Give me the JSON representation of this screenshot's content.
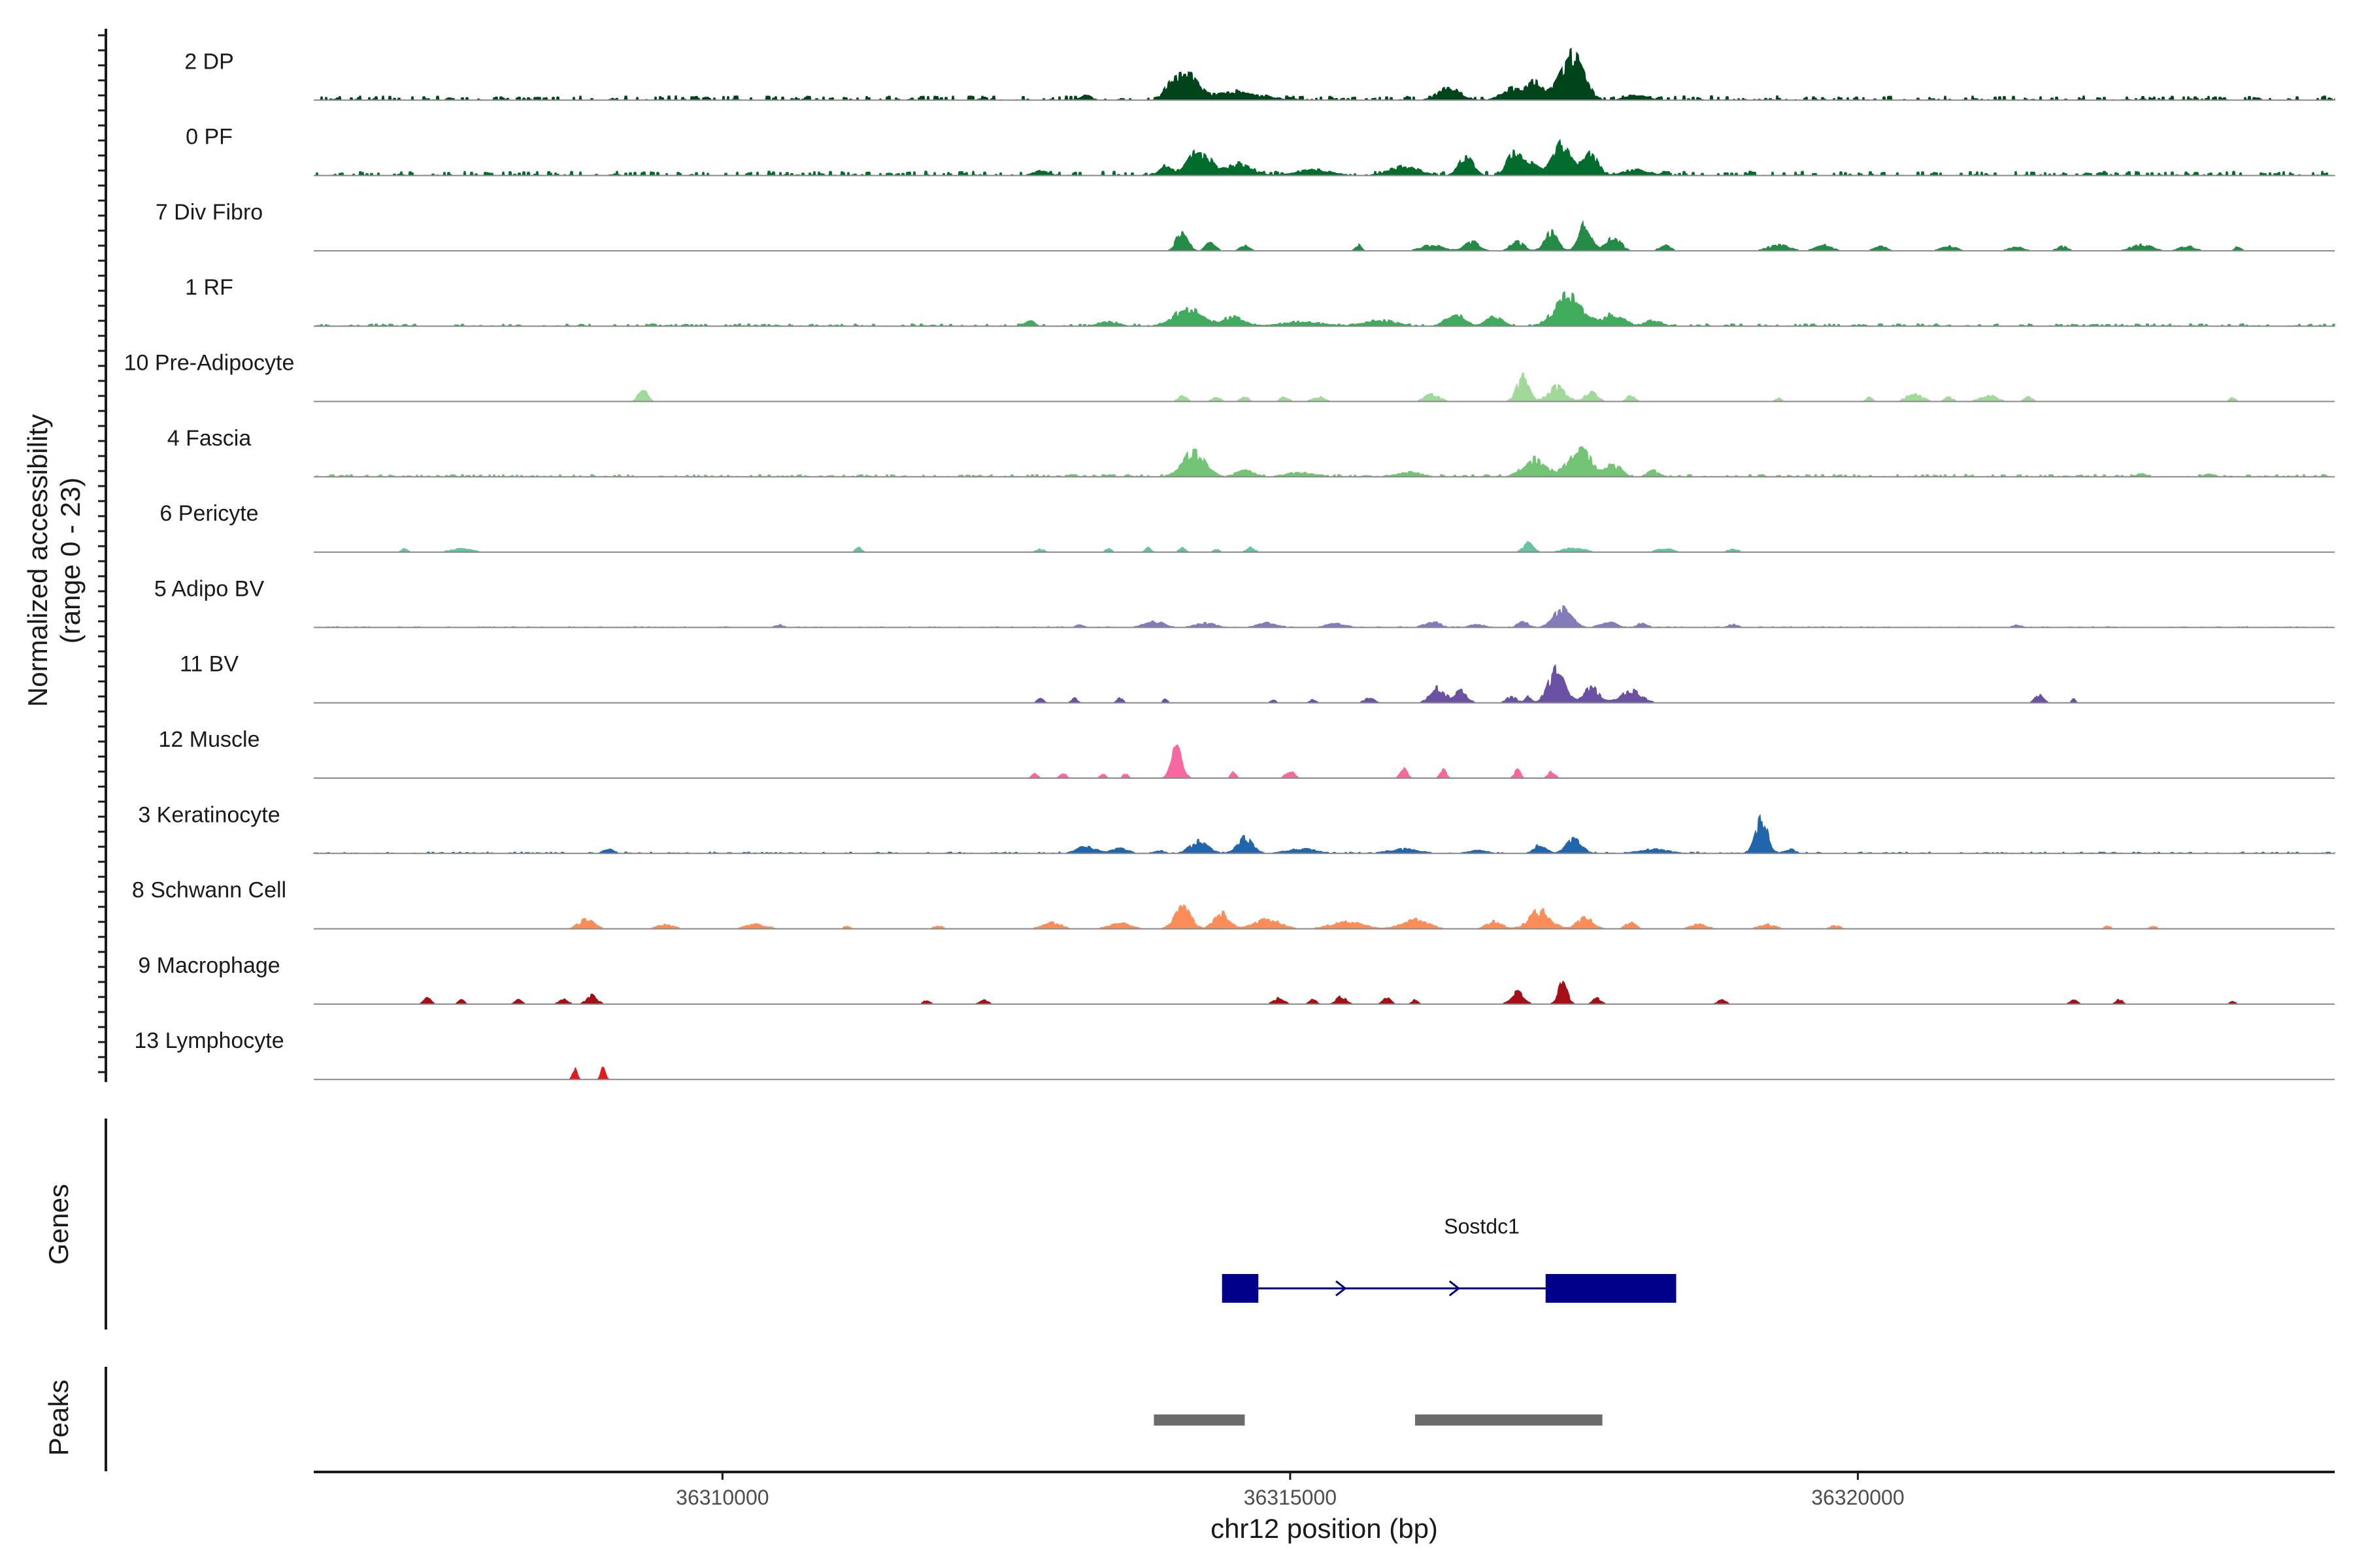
{
  "chart_data": {
    "type": "area",
    "xlabel": "chr12 position (bp)",
    "ylabel_line1": "Normalized accessibility",
    "ylabel_line2": "(range 0 - 23)",
    "ylim": [
      0,
      23
    ],
    "xlim": [
      36306400,
      36324200
    ],
    "x_ticks": [
      36310000,
      36315000,
      36320000
    ],
    "x_tick_labels": [
      "36310000",
      "36315000",
      "36320000"
    ],
    "tracks": [
      {
        "name": "2 DP",
        "color": "#00441b",
        "baseline": 1.5,
        "peaks": [
          [
            36313200,
            120,
            1.5
          ],
          [
            36313950,
            140,
            4
          ],
          [
            36314100,
            220,
            8
          ],
          [
            36314500,
            300,
            3
          ],
          [
            36314800,
            200,
            1.2
          ],
          [
            36316400,
            220,
            4
          ],
          [
            36316950,
            200,
            4
          ],
          [
            36317150,
            150,
            6
          ],
          [
            36317450,
            220,
            11
          ],
          [
            36317550,
            170,
            6
          ],
          [
            36318050,
            200,
            2
          ]
        ]
      },
      {
        "name": "0 PF",
        "color": "#006d2c",
        "baseline": 1.5,
        "peaks": [
          [
            36312800,
            150,
            1.5
          ],
          [
            36313900,
            120,
            3
          ],
          [
            36314200,
            220,
            8
          ],
          [
            36314550,
            250,
            4
          ],
          [
            36315200,
            350,
            2
          ],
          [
            36316000,
            300,
            3
          ],
          [
            36316550,
            140,
            6
          ],
          [
            36316950,
            120,
            7
          ],
          [
            36317400,
            180,
            11
          ],
          [
            36317650,
            130,
            8
          ],
          [
            36317100,
            180,
            5
          ],
          [
            36318050,
            250,
            2
          ]
        ]
      },
      {
        "name": "7 Div Fibro",
        "color": "#238b45",
        "baseline": 0,
        "peaks": [
          [
            36314050,
            110,
            7
          ],
          [
            36314300,
            90,
            3
          ],
          [
            36314600,
            90,
            2
          ],
          [
            36315600,
            60,
            2
          ],
          [
            36316250,
            200,
            2
          ],
          [
            36316600,
            150,
            3
          ],
          [
            36317000,
            130,
            3
          ],
          [
            36317300,
            130,
            6
          ],
          [
            36317600,
            120,
            9
          ],
          [
            36317850,
            130,
            5
          ],
          [
            36318300,
            100,
            2
          ],
          [
            36319300,
            200,
            2
          ],
          [
            36319700,
            150,
            2
          ],
          [
            36320200,
            120,
            1.5
          ],
          [
            36320800,
            150,
            1.5
          ],
          [
            36321400,
            150,
            1.2
          ],
          [
            36321800,
            100,
            1.5
          ],
          [
            36322500,
            200,
            2
          ],
          [
            36322900,
            150,
            1.5
          ],
          [
            36323350,
            60,
            1.5
          ]
        ]
      },
      {
        "name": "1 RF",
        "color": "#41ab5d",
        "baseline": 0.8,
        "peaks": [
          [
            36312700,
            100,
            2
          ],
          [
            36313400,
            200,
            1.5
          ],
          [
            36314100,
            280,
            6
          ],
          [
            36314500,
            200,
            3
          ],
          [
            36315100,
            400,
            1.5
          ],
          [
            36315800,
            300,
            2
          ],
          [
            36316450,
            180,
            4
          ],
          [
            36316800,
            160,
            3
          ],
          [
            36317450,
            260,
            10
          ],
          [
            36317850,
            200,
            4
          ],
          [
            36318200,
            150,
            2
          ]
        ]
      },
      {
        "name": "10 Pre-Adipocyte",
        "color": "#a1d99b",
        "baseline": 0,
        "peaks": [
          [
            36309300,
            90,
            4
          ],
          [
            36314050,
            80,
            2
          ],
          [
            36314350,
            80,
            1.5
          ],
          [
            36314600,
            80,
            1.5
          ],
          [
            36314950,
            80,
            1.5
          ],
          [
            36315250,
            120,
            1.5
          ],
          [
            36316250,
            140,
            2.5
          ],
          [
            36317050,
            120,
            8
          ],
          [
            36317350,
            160,
            5
          ],
          [
            36317650,
            120,
            3
          ],
          [
            36318000,
            80,
            2
          ],
          [
            36319300,
            60,
            1.2
          ],
          [
            36320100,
            60,
            1.5
          ],
          [
            36320500,
            140,
            3
          ],
          [
            36320800,
            80,
            1.5
          ],
          [
            36321150,
            160,
            2
          ],
          [
            36321500,
            80,
            1.5
          ],
          [
            36323300,
            60,
            1.2
          ]
        ]
      },
      {
        "name": "4 Fascia",
        "color": "#74c476",
        "baseline": 0.8,
        "peaks": [
          [
            36314150,
            220,
            8
          ],
          [
            36314600,
            150,
            3
          ],
          [
            36315100,
            300,
            1.5
          ],
          [
            36316050,
            250,
            1.5
          ],
          [
            36317150,
            220,
            6
          ],
          [
            36317550,
            220,
            9
          ],
          [
            36317850,
            150,
            4
          ],
          [
            36318200,
            120,
            2
          ],
          [
            36322500,
            100,
            1
          ],
          [
            36323100,
            100,
            1
          ]
        ]
      },
      {
        "name": "6 Pericyte",
        "color": "#66c2a4",
        "baseline": 0,
        "peaks": [
          [
            36307200,
            60,
            1.5
          ],
          [
            36307700,
            200,
            1.2
          ],
          [
            36311200,
            60,
            1.5
          ],
          [
            36312800,
            80,
            1
          ],
          [
            36313400,
            60,
            1.2
          ],
          [
            36313750,
            60,
            1.5
          ],
          [
            36314050,
            60,
            1.5
          ],
          [
            36314350,
            60,
            1
          ],
          [
            36314650,
            80,
            1.5
          ],
          [
            36317100,
            100,
            3
          ],
          [
            36317500,
            200,
            1.5
          ],
          [
            36318300,
            150,
            1.2
          ],
          [
            36318900,
            100,
            1
          ]
        ]
      },
      {
        "name": "5 Adipo BV",
        "color": "#807dba",
        "baseline": 0.3,
        "peaks": [
          [
            36310500,
            80,
            1
          ],
          [
            36313150,
            80,
            1
          ],
          [
            36313800,
            200,
            2
          ],
          [
            36314250,
            200,
            1.5
          ],
          [
            36314800,
            200,
            1.5
          ],
          [
            36315400,
            200,
            1.2
          ],
          [
            36316250,
            150,
            2
          ],
          [
            36316650,
            150,
            1
          ],
          [
            36317050,
            100,
            2
          ],
          [
            36317400,
            180,
            6
          ],
          [
            36317800,
            150,
            2
          ],
          [
            36318100,
            100,
            1.5
          ],
          [
            36318900,
            100,
            1
          ],
          [
            36321400,
            80,
            1
          ]
        ]
      },
      {
        "name": "11 BV",
        "color": "#6a51a3",
        "baseline": 0,
        "peaks": [
          [
            36312800,
            60,
            1.5
          ],
          [
            36313100,
            60,
            1.5
          ],
          [
            36313500,
            60,
            1.5
          ],
          [
            36313900,
            40,
            1.5
          ],
          [
            36314850,
            50,
            1.2
          ],
          [
            36315200,
            60,
            1.2
          ],
          [
            36315700,
            100,
            1.5
          ],
          [
            36316300,
            140,
            5
          ],
          [
            36316500,
            120,
            4
          ],
          [
            36316950,
            100,
            2
          ],
          [
            36317100,
            60,
            2
          ],
          [
            36317350,
            160,
            11
          ],
          [
            36317650,
            150,
            5
          ],
          [
            36318000,
            200,
            4
          ],
          [
            36321600,
            80,
            3
          ],
          [
            36321900,
            40,
            1.2
          ]
        ]
      },
      {
        "name": "12 Muscle",
        "color": "#f768a1",
        "baseline": 0,
        "peaks": [
          [
            36312750,
            60,
            1.5
          ],
          [
            36313000,
            60,
            1.5
          ],
          [
            36313350,
            50,
            1.5
          ],
          [
            36313550,
            50,
            1.5
          ],
          [
            36314000,
            100,
            11
          ],
          [
            36314500,
            50,
            2
          ],
          [
            36315000,
            80,
            2.5
          ],
          [
            36316000,
            70,
            3
          ],
          [
            36316350,
            60,
            3
          ],
          [
            36317000,
            60,
            3
          ],
          [
            36317300,
            70,
            2
          ]
        ]
      },
      {
        "name": "3 Keratinocyte",
        "color": "#2166ac",
        "baseline": 0.5,
        "peaks": [
          [
            36309000,
            100,
            1.5
          ],
          [
            36313200,
            180,
            2.5
          ],
          [
            36313500,
            150,
            2
          ],
          [
            36313850,
            100,
            1
          ],
          [
            36314200,
            180,
            4
          ],
          [
            36314600,
            150,
            5
          ],
          [
            36315100,
            300,
            1.5
          ],
          [
            36316000,
            300,
            1.5
          ],
          [
            36316650,
            200,
            1
          ],
          [
            36317200,
            120,
            3
          ],
          [
            36317500,
            150,
            5
          ],
          [
            36318200,
            300,
            1.5
          ],
          [
            36319150,
            120,
            12
          ],
          [
            36319400,
            100,
            1.5
          ]
        ]
      },
      {
        "name": "8 Schwann Cell",
        "color": "#fc8d59",
        "baseline": 0,
        "peaks": [
          [
            36308800,
            150,
            3
          ],
          [
            36309500,
            150,
            1.5
          ],
          [
            36310300,
            200,
            1.5
          ],
          [
            36311100,
            60,
            1
          ],
          [
            36311900,
            80,
            1
          ],
          [
            36312900,
            180,
            2
          ],
          [
            36313500,
            200,
            2
          ],
          [
            36314050,
            150,
            8
          ],
          [
            36314400,
            150,
            5
          ],
          [
            36314800,
            250,
            3
          ],
          [
            36315500,
            300,
            2.5
          ],
          [
            36316100,
            250,
            3
          ],
          [
            36316800,
            150,
            2.5
          ],
          [
            36317200,
            200,
            6
          ],
          [
            36317600,
            150,
            4
          ],
          [
            36318000,
            100,
            2
          ],
          [
            36318600,
            150,
            1.5
          ],
          [
            36319200,
            150,
            1.5
          ],
          [
            36319800,
            100,
            1
          ],
          [
            36322200,
            60,
            1
          ],
          [
            36322600,
            60,
            1
          ]
        ]
      },
      {
        "name": "9 Macrophage",
        "color": "#a50f15",
        "baseline": 0,
        "peaks": [
          [
            36307400,
            70,
            2
          ],
          [
            36307700,
            60,
            1.5
          ],
          [
            36308200,
            70,
            1.5
          ],
          [
            36308600,
            80,
            2
          ],
          [
            36308850,
            100,
            3
          ],
          [
            36311800,
            60,
            1.5
          ],
          [
            36312300,
            80,
            1.5
          ],
          [
            36314900,
            100,
            2
          ],
          [
            36315200,
            70,
            1.5
          ],
          [
            36315450,
            100,
            2.5
          ],
          [
            36315850,
            80,
            2
          ],
          [
            36316100,
            60,
            1.5
          ],
          [
            36317000,
            120,
            4
          ],
          [
            36317400,
            90,
            7
          ],
          [
            36317700,
            80,
            2
          ],
          [
            36318800,
            80,
            1.5
          ],
          [
            36321900,
            70,
            1.5
          ],
          [
            36322300,
            70,
            1.5
          ],
          [
            36323300,
            50,
            1.2
          ]
        ]
      },
      {
        "name": "13 Lymphocyte",
        "color": "#e31a1c",
        "baseline": 0,
        "peaks": [
          [
            36308700,
            45,
            4
          ],
          [
            36308950,
            45,
            4
          ]
        ]
      }
    ],
    "genes": [
      {
        "name": "Sostdc1",
        "color": "#00008b",
        "start": 36314400,
        "end": 36318400,
        "exons": [
          [
            36314400,
            36314720
          ],
          [
            36317250,
            36318400
          ]
        ],
        "arrows": [
          36314500,
          36315450,
          36316450
        ]
      }
    ],
    "peaks_track_color": "#6b6b6b",
    "peak_regions": [
      [
        36313800,
        36314600
      ],
      [
        36316100,
        36317750
      ]
    ],
    "side_labels": [
      "Genes",
      "Peaks"
    ]
  }
}
